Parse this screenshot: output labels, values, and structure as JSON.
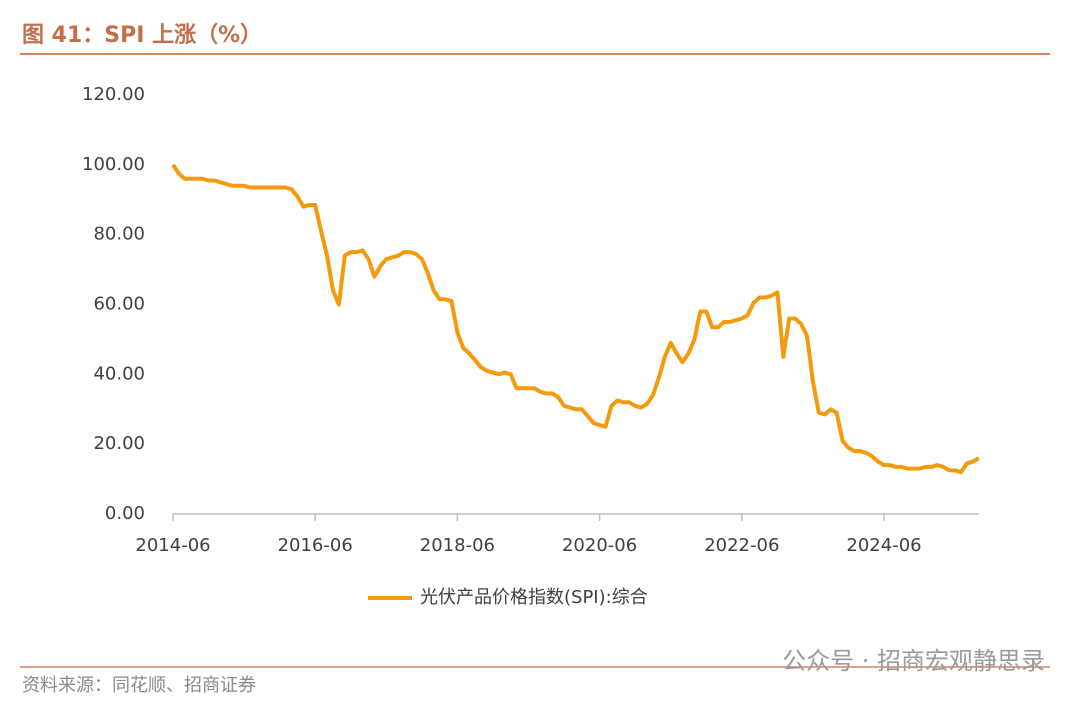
{
  "header": {
    "title": "图 41：SPI 上涨（%）"
  },
  "chart_data": {
    "type": "line",
    "x": [
      "2014-06",
      "2014-07",
      "2014-08",
      "2014-09",
      "2014-10",
      "2014-11",
      "2014-12",
      "2015-01",
      "2015-02",
      "2015-03",
      "2015-04",
      "2015-05",
      "2015-06",
      "2015-07",
      "2015-08",
      "2015-09",
      "2015-10",
      "2015-11",
      "2015-12",
      "2016-01",
      "2016-02",
      "2016-03",
      "2016-04",
      "2016-05",
      "2016-06",
      "2016-07",
      "2016-08",
      "2016-09",
      "2016-10",
      "2016-11",
      "2016-12",
      "2017-01",
      "2017-02",
      "2017-03",
      "2017-04",
      "2017-05",
      "2017-06",
      "2017-07",
      "2017-08",
      "2017-09",
      "2017-10",
      "2017-11",
      "2017-12",
      "2018-01",
      "2018-02",
      "2018-03",
      "2018-04",
      "2018-05",
      "2018-06",
      "2018-07",
      "2018-08",
      "2018-09",
      "2018-10",
      "2018-11",
      "2018-12",
      "2019-01",
      "2019-02",
      "2019-03",
      "2019-04",
      "2019-05",
      "2019-06",
      "2019-07",
      "2019-08",
      "2019-09",
      "2019-10",
      "2019-11",
      "2019-12",
      "2020-01",
      "2020-02",
      "2020-03",
      "2020-04",
      "2020-05",
      "2020-06",
      "2020-07",
      "2020-08",
      "2020-09",
      "2020-10",
      "2020-11",
      "2020-12",
      "2021-01",
      "2021-02",
      "2021-03",
      "2021-04",
      "2021-05",
      "2021-06",
      "2021-07",
      "2021-08",
      "2021-09",
      "2021-10",
      "2021-11",
      "2021-12",
      "2022-01",
      "2022-02",
      "2022-03",
      "2022-04",
      "2022-05",
      "2022-06",
      "2022-07",
      "2022-08",
      "2022-09",
      "2022-10",
      "2022-11",
      "2022-12",
      "2023-01",
      "2023-02",
      "2023-03",
      "2023-04",
      "2023-05",
      "2023-06",
      "2023-07",
      "2023-08",
      "2023-09",
      "2023-10",
      "2023-11",
      "2023-12",
      "2024-01",
      "2024-02",
      "2024-03",
      "2024-04",
      "2024-05",
      "2024-06",
      "2024-07",
      "2024-08",
      "2024-09",
      "2024-10",
      "2024-11",
      "2024-12",
      "2025-01",
      "2025-02",
      "2025-03",
      "2025-04",
      "2025-05",
      "2025-06",
      "2025-07",
      "2025-08",
      "2025-09",
      "2025-10"
    ],
    "series": [
      {
        "name": "光伏产品价格指数(SPI):综合",
        "color": "#f59a0c",
        "values": [
          100,
          97.5,
          96,
          96,
          96,
          96,
          95.5,
          95.5,
          95,
          94.5,
          94,
          94,
          94,
          93.5,
          93.5,
          93.5,
          93.5,
          93.5,
          93.5,
          93.5,
          93,
          91,
          88,
          88.5,
          88.5,
          81,
          74,
          64,
          60,
          74,
          75,
          75,
          75.5,
          73,
          68,
          71,
          73,
          73.5,
          74,
          75,
          75,
          74.5,
          73,
          69,
          64,
          61.5,
          61.5,
          61,
          52,
          47.5,
          46,
          44,
          42,
          41,
          40.5,
          40,
          40.5,
          40,
          36,
          36,
          36,
          36,
          35,
          34.5,
          34.5,
          33.5,
          31,
          30.5,
          30,
          30,
          28,
          26,
          25.5,
          25,
          31,
          32.5,
          32,
          32,
          31,
          30.5,
          31.5,
          34,
          39,
          45,
          49,
          46,
          43.5,
          46,
          50,
          58,
          58,
          53.5,
          53.5,
          55,
          55,
          55.5,
          56,
          57,
          60.5,
          62,
          62,
          62.5,
          63.5,
          45,
          56,
          56,
          54.5,
          51,
          38,
          29,
          28.5,
          30,
          29,
          21,
          19,
          18,
          18,
          17.5,
          16.5,
          15,
          14,
          14,
          13.5,
          13.5,
          13,
          13,
          13,
          13.5,
          13.5,
          14,
          13.5,
          12.5,
          12.5,
          12,
          14.5,
          15,
          16
        ]
      }
    ],
    "xticks": [
      "2014-06",
      "2016-06",
      "2018-06",
      "2020-06",
      "2022-06",
      "2024-06"
    ],
    "ylim": [
      0,
      120
    ],
    "yticks": [
      {
        "value": 0,
        "label": "0.00"
      },
      {
        "value": 20,
        "label": "20.00"
      },
      {
        "value": 40,
        "label": "40.00"
      },
      {
        "value": 60,
        "label": "60.00"
      },
      {
        "value": 80,
        "label": "80.00"
      },
      {
        "value": 100,
        "label": "100.00"
      },
      {
        "value": 120,
        "label": "120.00"
      }
    ],
    "grid": false,
    "legend": "bottom"
  },
  "footer": {
    "source": "资料来源：同花顺、招商证券",
    "watermark": "公众号 · 招商宏观静思录"
  }
}
